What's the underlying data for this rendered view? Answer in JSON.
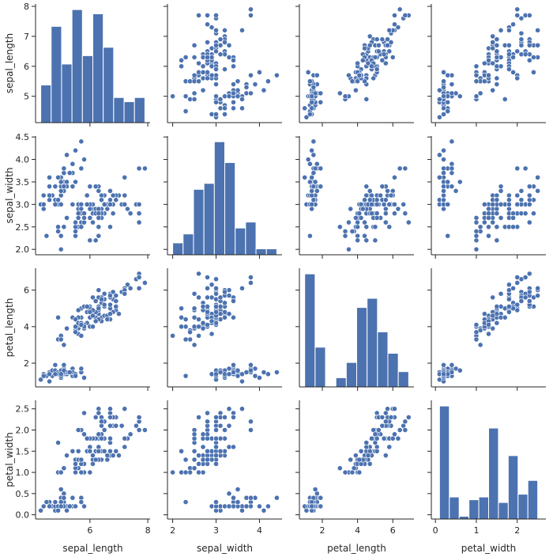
{
  "chart_data": {
    "type": "pairplot",
    "title": "",
    "variables": [
      "sepal_length",
      "sepal_width",
      "petal_length",
      "petal_width"
    ],
    "color": "#4c72b0",
    "grid": false,
    "ticks": {
      "sepal_length": {
        "scatter_x": [
          6,
          8
        ],
        "scatter_y": [
          5,
          6,
          7,
          8
        ],
        "hist_x": [
          6,
          8
        ]
      },
      "sepal_width": {
        "scatter_x": [
          2,
          3,
          4
        ],
        "scatter_y": [
          2.0,
          2.5,
          3.0,
          3.5,
          4.0,
          4.5
        ],
        "hist_x": [
          2,
          3,
          4
        ]
      },
      "petal_length": {
        "scatter_x": [
          2,
          4,
          6
        ],
        "scatter_y": [
          2,
          4,
          6
        ],
        "hist_x": [
          2,
          4,
          6
        ]
      },
      "petal_width": {
        "scatter_x": [
          0,
          1,
          2
        ],
        "scatter_y": [
          0.0,
          0.5,
          1.0,
          1.5,
          2.0,
          2.5
        ],
        "hist_x": [
          0,
          1,
          2
        ]
      }
    },
    "tick_format": {
      "sepal_length": "int",
      "sepal_width": "auto",
      "petal_length": "int",
      "petal_width": "fixed1"
    },
    "histograms": {
      "sepal_length": {
        "bin_edges": [
          4.3,
          4.66,
          5.02,
          5.38,
          5.74,
          6.1,
          6.46,
          6.82,
          7.18,
          7.54,
          7.9
        ],
        "counts": [
          9,
          23,
          14,
          27,
          16,
          26,
          18,
          6,
          5,
          6
        ]
      },
      "sepal_width": {
        "bin_edges": [
          2.0,
          2.24,
          2.48,
          2.72,
          2.96,
          3.2,
          3.44,
          3.68,
          3.92,
          4.16,
          4.4
        ],
        "counts": [
          4,
          7,
          22,
          24,
          38,
          31,
          9,
          11,
          2,
          2
        ]
      },
      "petal_length": {
        "bin_edges": [
          1.0,
          1.59,
          2.18,
          2.77,
          3.36,
          3.95,
          4.54,
          5.13,
          5.72,
          6.31,
          6.9
        ],
        "counts": [
          37,
          13,
          0,
          3,
          8,
          26,
          29,
          18,
          11,
          5
        ]
      },
      "petal_width": {
        "bin_edges": [
          0.1,
          0.34,
          0.58,
          0.82,
          1.06,
          1.3,
          1.54,
          1.78,
          2.02,
          2.26,
          2.5
        ],
        "counts": [
          41,
          8,
          1,
          7,
          8,
          33,
          6,
          23,
          9,
          14
        ]
      }
    },
    "records": [
      [
        5.1,
        3.5,
        1.4,
        0.2
      ],
      [
        4.9,
        3.0,
        1.4,
        0.2
      ],
      [
        4.7,
        3.2,
        1.3,
        0.2
      ],
      [
        4.6,
        3.1,
        1.5,
        0.2
      ],
      [
        5.0,
        3.6,
        1.4,
        0.2
      ],
      [
        5.4,
        3.9,
        1.7,
        0.4
      ],
      [
        4.6,
        3.4,
        1.4,
        0.3
      ],
      [
        5.0,
        3.4,
        1.5,
        0.2
      ],
      [
        4.4,
        2.9,
        1.4,
        0.2
      ],
      [
        4.9,
        3.1,
        1.5,
        0.1
      ],
      [
        5.4,
        3.7,
        1.5,
        0.2
      ],
      [
        4.8,
        3.4,
        1.6,
        0.2
      ],
      [
        4.8,
        3.0,
        1.4,
        0.1
      ],
      [
        4.3,
        3.0,
        1.1,
        0.1
      ],
      [
        5.8,
        4.0,
        1.2,
        0.2
      ],
      [
        5.7,
        4.4,
        1.5,
        0.4
      ],
      [
        5.4,
        3.9,
        1.3,
        0.4
      ],
      [
        5.1,
        3.5,
        1.4,
        0.3
      ],
      [
        5.7,
        3.8,
        1.7,
        0.3
      ],
      [
        5.1,
        3.8,
        1.5,
        0.3
      ],
      [
        5.4,
        3.4,
        1.7,
        0.2
      ],
      [
        5.1,
        3.7,
        1.5,
        0.4
      ],
      [
        4.6,
        3.6,
        1.0,
        0.2
      ],
      [
        5.1,
        3.3,
        1.7,
        0.5
      ],
      [
        4.8,
        3.4,
        1.9,
        0.2
      ],
      [
        5.0,
        3.0,
        1.6,
        0.2
      ],
      [
        5.0,
        3.4,
        1.6,
        0.4
      ],
      [
        5.2,
        3.5,
        1.5,
        0.2
      ],
      [
        5.2,
        3.4,
        1.4,
        0.2
      ],
      [
        4.7,
        3.2,
        1.6,
        0.2
      ],
      [
        4.8,
        3.1,
        1.6,
        0.2
      ],
      [
        5.4,
        3.4,
        1.5,
        0.4
      ],
      [
        5.2,
        4.1,
        1.5,
        0.1
      ],
      [
        5.5,
        4.2,
        1.4,
        0.2
      ],
      [
        4.9,
        3.1,
        1.5,
        0.2
      ],
      [
        5.0,
        3.2,
        1.2,
        0.2
      ],
      [
        5.5,
        3.5,
        1.3,
        0.2
      ],
      [
        4.9,
        3.6,
        1.4,
        0.1
      ],
      [
        4.4,
        3.0,
        1.3,
        0.2
      ],
      [
        5.1,
        3.4,
        1.5,
        0.2
      ],
      [
        5.0,
        3.5,
        1.3,
        0.3
      ],
      [
        4.5,
        2.3,
        1.3,
        0.3
      ],
      [
        4.4,
        3.2,
        1.3,
        0.2
      ],
      [
        5.0,
        3.5,
        1.6,
        0.6
      ],
      [
        5.1,
        3.8,
        1.9,
        0.4
      ],
      [
        4.8,
        3.0,
        1.4,
        0.3
      ],
      [
        5.1,
        3.8,
        1.6,
        0.2
      ],
      [
        4.6,
        3.2,
        1.4,
        0.2
      ],
      [
        5.3,
        3.7,
        1.5,
        0.2
      ],
      [
        5.0,
        3.3,
        1.4,
        0.2
      ],
      [
        7.0,
        3.2,
        4.7,
        1.4
      ],
      [
        6.4,
        3.2,
        4.5,
        1.5
      ],
      [
        6.9,
        3.1,
        4.9,
        1.5
      ],
      [
        5.5,
        2.3,
        4.0,
        1.3
      ],
      [
        6.5,
        2.8,
        4.6,
        1.5
      ],
      [
        5.7,
        2.8,
        4.5,
        1.3
      ],
      [
        6.3,
        3.3,
        4.7,
        1.6
      ],
      [
        4.9,
        2.4,
        3.3,
        1.0
      ],
      [
        6.6,
        2.9,
        4.6,
        1.3
      ],
      [
        5.2,
        2.7,
        3.9,
        1.4
      ],
      [
        5.0,
        2.0,
        3.5,
        1.0
      ],
      [
        5.9,
        3.0,
        4.2,
        1.5
      ],
      [
        6.0,
        2.2,
        4.0,
        1.0
      ],
      [
        6.1,
        2.9,
        4.7,
        1.4
      ],
      [
        5.6,
        2.9,
        3.6,
        1.3
      ],
      [
        6.7,
        3.1,
        4.4,
        1.4
      ],
      [
        5.6,
        3.0,
        4.5,
        1.5
      ],
      [
        5.8,
        2.7,
        4.1,
        1.0
      ],
      [
        6.2,
        2.2,
        4.5,
        1.5
      ],
      [
        5.6,
        2.5,
        3.9,
        1.1
      ],
      [
        5.9,
        3.2,
        4.8,
        1.8
      ],
      [
        6.1,
        2.8,
        4.0,
        1.3
      ],
      [
        6.3,
        2.5,
        4.9,
        1.5
      ],
      [
        6.1,
        2.8,
        4.7,
        1.2
      ],
      [
        6.4,
        2.9,
        4.3,
        1.3
      ],
      [
        6.6,
        3.0,
        4.4,
        1.4
      ],
      [
        6.8,
        2.8,
        4.8,
        1.4
      ],
      [
        6.7,
        3.0,
        5.0,
        1.7
      ],
      [
        6.0,
        2.9,
        4.5,
        1.5
      ],
      [
        5.7,
        2.6,
        3.5,
        1.0
      ],
      [
        5.5,
        2.4,
        3.8,
        1.1
      ],
      [
        5.5,
        2.4,
        3.7,
        1.0
      ],
      [
        5.8,
        2.7,
        3.9,
        1.2
      ],
      [
        6.0,
        2.7,
        5.1,
        1.6
      ],
      [
        5.4,
        3.0,
        4.5,
        1.5
      ],
      [
        6.0,
        3.4,
        4.5,
        1.6
      ],
      [
        6.7,
        3.1,
        4.7,
        1.5
      ],
      [
        6.3,
        2.3,
        4.4,
        1.3
      ],
      [
        5.6,
        3.0,
        4.1,
        1.3
      ],
      [
        5.5,
        2.5,
        4.0,
        1.3
      ],
      [
        5.5,
        2.6,
        4.4,
        1.2
      ],
      [
        6.1,
        3.0,
        4.6,
        1.4
      ],
      [
        5.8,
        2.6,
        4.0,
        1.2
      ],
      [
        5.0,
        2.3,
        3.3,
        1.0
      ],
      [
        5.6,
        2.7,
        4.2,
        1.3
      ],
      [
        5.7,
        3.0,
        4.2,
        1.2
      ],
      [
        5.7,
        2.9,
        4.2,
        1.3
      ],
      [
        6.2,
        2.9,
        4.3,
        1.3
      ],
      [
        5.1,
        2.5,
        3.0,
        1.1
      ],
      [
        5.7,
        2.8,
        4.1,
        1.3
      ],
      [
        6.3,
        3.3,
        6.0,
        2.5
      ],
      [
        5.8,
        2.7,
        5.1,
        1.9
      ],
      [
        7.1,
        3.0,
        5.9,
        2.1
      ],
      [
        6.3,
        2.9,
        5.6,
        1.8
      ],
      [
        6.5,
        3.0,
        5.8,
        2.2
      ],
      [
        7.6,
        3.0,
        6.6,
        2.1
      ],
      [
        4.9,
        2.5,
        4.5,
        1.7
      ],
      [
        7.3,
        2.9,
        6.3,
        1.8
      ],
      [
        6.7,
        2.5,
        5.8,
        1.8
      ],
      [
        7.2,
        3.6,
        6.1,
        2.5
      ],
      [
        6.5,
        3.2,
        5.1,
        2.0
      ],
      [
        6.4,
        2.7,
        5.3,
        1.9
      ],
      [
        6.8,
        3.0,
        5.5,
        2.1
      ],
      [
        5.7,
        2.5,
        5.0,
        2.0
      ],
      [
        5.8,
        2.8,
        5.1,
        2.4
      ],
      [
        6.4,
        3.2,
        5.3,
        2.3
      ],
      [
        6.5,
        3.0,
        5.5,
        1.8
      ],
      [
        7.7,
        3.8,
        6.7,
        2.2
      ],
      [
        7.7,
        2.6,
        6.9,
        2.3
      ],
      [
        6.0,
        2.2,
        5.0,
        1.5
      ],
      [
        6.9,
        3.2,
        5.7,
        2.3
      ],
      [
        5.6,
        2.8,
        4.9,
        2.0
      ],
      [
        7.7,
        2.8,
        6.7,
        2.0
      ],
      [
        6.3,
        2.7,
        4.9,
        1.8
      ],
      [
        6.7,
        3.3,
        5.7,
        2.1
      ],
      [
        7.2,
        3.2,
        6.0,
        1.8
      ],
      [
        6.2,
        2.8,
        4.8,
        1.8
      ],
      [
        6.1,
        3.0,
        4.9,
        1.8
      ],
      [
        6.4,
        2.8,
        5.6,
        2.1
      ],
      [
        7.2,
        3.0,
        5.8,
        1.6
      ],
      [
        7.4,
        2.8,
        6.1,
        1.9
      ],
      [
        7.9,
        3.8,
        6.4,
        2.0
      ],
      [
        6.4,
        2.8,
        5.6,
        2.2
      ],
      [
        6.3,
        2.8,
        5.1,
        1.5
      ],
      [
        6.1,
        2.6,
        5.6,
        1.4
      ],
      [
        7.7,
        3.0,
        6.1,
        2.3
      ],
      [
        6.3,
        3.4,
        5.6,
        2.4
      ],
      [
        6.4,
        3.1,
        5.5,
        1.8
      ],
      [
        6.0,
        3.0,
        4.8,
        1.8
      ],
      [
        6.9,
        3.1,
        5.4,
        2.1
      ],
      [
        6.7,
        3.1,
        5.6,
        2.4
      ],
      [
        6.9,
        3.1,
        5.1,
        2.3
      ],
      [
        5.8,
        2.7,
        5.1,
        1.9
      ],
      [
        6.8,
        3.2,
        5.9,
        2.3
      ],
      [
        6.7,
        3.3,
        5.7,
        2.5
      ],
      [
        6.7,
        3.0,
        5.2,
        2.3
      ],
      [
        6.3,
        2.5,
        5.0,
        1.9
      ],
      [
        6.5,
        3.0,
        5.2,
        2.0
      ],
      [
        6.2,
        3.4,
        5.4,
        2.3
      ],
      [
        5.9,
        3.0,
        5.1,
        1.8
      ]
    ]
  }
}
